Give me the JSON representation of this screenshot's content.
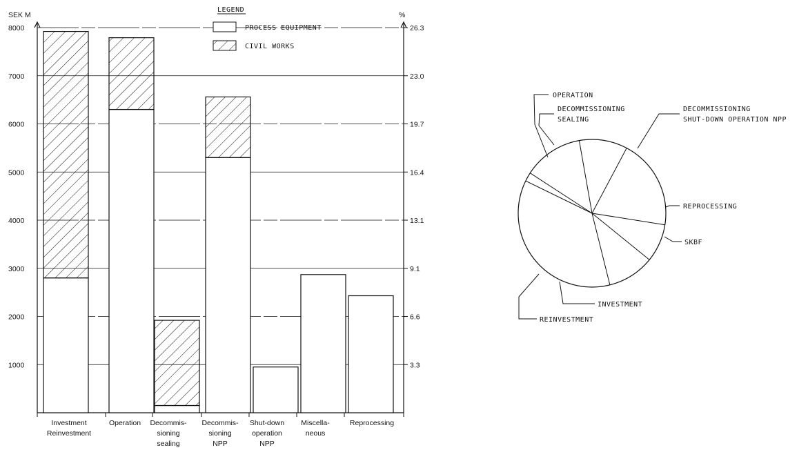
{
  "chart_data": [
    {
      "type": "bar",
      "stacked": true,
      "y_axis_label": "SEK M",
      "y2_axis_label": "%",
      "ylim": [
        0,
        8000
      ],
      "y_ticks": [
        "1000",
        "2000",
        "3000",
        "4000",
        "5000",
        "6000",
        "7000",
        "8000"
      ],
      "y2_ticks": [
        "3.3",
        "6.6",
        "9.1",
        "13.1",
        "16.4",
        "19.7",
        "23.0",
        "26.3"
      ],
      "legend": {
        "title": "LEGEND",
        "items": [
          {
            "label": "PROCESS EQUIPMENT",
            "pattern": "plain"
          },
          {
            "label": "CIVIL WORKS",
            "pattern": "hatched"
          }
        ]
      },
      "categories": [
        [
          "Investment",
          "Reinvestment"
        ],
        [
          "Operation"
        ],
        [
          "Decommis-",
          "sioning",
          "sealing"
        ],
        [
          "Decommis-",
          "sioning",
          "NPP"
        ],
        [
          "Shut-down",
          "operation",
          "NPP"
        ],
        [
          "Miscella-",
          "neous"
        ],
        [
          "Reprocessing"
        ]
      ],
      "series": [
        {
          "name": "PROCESS EQUIPMENT",
          "values": [
            2800,
            6300,
            150,
            5300,
            950,
            2870,
            2430
          ]
        },
        {
          "name": "CIVIL WORKS",
          "values": [
            5120,
            1490,
            1770,
            1260,
            0,
            0,
            0
          ]
        }
      ],
      "grid": true
    },
    {
      "type": "pie",
      "slices": [
        {
          "label": "DECOMMISSIONING SHUT-DOWN OPERATION NPP",
          "start_deg": 28,
          "end_deg": 99
        },
        {
          "label": "REPROCESSING",
          "start_deg": 99,
          "end_deg": 129
        },
        {
          "label": "SKBF",
          "start_deg": 129,
          "end_deg": 166
        },
        {
          "label": "INVESTMENT",
          "start_deg": 166,
          "end_deg": 296
        },
        {
          "label": "REINVESTMENT",
          "start_deg": 296,
          "end_deg": 303
        },
        {
          "label": "OPERATION",
          "start_deg": 303,
          "end_deg": 350
        },
        {
          "label": "DECOMMISSIONING SEALING",
          "start_deg": 350,
          "end_deg": 388
        }
      ]
    }
  ]
}
